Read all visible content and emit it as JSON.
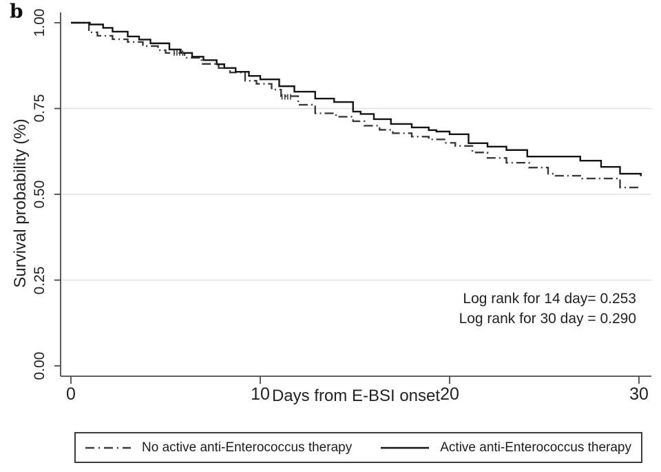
{
  "panel_label": "b",
  "annotations": {
    "line1": "Log rank for 14 day= 0.253",
    "line2": "Log rank for 30 day = 0.290"
  },
  "chart_data": {
    "type": "line",
    "subtype": "kaplan-meier-step",
    "title": "",
    "xlabel": "Days from E-BSI onset",
    "ylabel": "Survival probability (%)",
    "xlim": [
      0,
      30.2
    ],
    "ylim": [
      0.0,
      1.0
    ],
    "x_tick_values": [
      0,
      10,
      20,
      30
    ],
    "x_tick_labels": [
      "0",
      "10",
      "20",
      "30"
    ],
    "y_tick_values": [
      0.0,
      0.25,
      0.5,
      0.75,
      1.0
    ],
    "y_tick_labels": [
      "0.00",
      "0.25",
      "0.50",
      "0.75",
      "1.00"
    ],
    "gridline_values": [
      0.25,
      0.5,
      0.75
    ],
    "grid": true,
    "legend_position": "bottom",
    "axis_color": "#4a4a4a",
    "grid_color": "#e0e0e0",
    "series": [
      {
        "name": "No active anti-Enterococcus therapy",
        "style": "dash-dot",
        "color": "#3a3a3a",
        "points": [
          [
            0,
            1.0
          ],
          [
            0.95,
            0.972
          ],
          [
            1.4,
            0.962
          ],
          [
            2.2,
            0.952
          ],
          [
            3.0,
            0.944
          ],
          [
            3.8,
            0.932
          ],
          [
            4.6,
            0.92
          ],
          [
            5.0,
            0.912
          ],
          [
            6.0,
            0.898
          ],
          [
            6.9,
            0.88
          ],
          [
            7.8,
            0.868
          ],
          [
            8.4,
            0.855
          ],
          [
            9.2,
            0.831
          ],
          [
            9.8,
            0.822
          ],
          [
            10.6,
            0.805
          ],
          [
            11.1,
            0.786
          ],
          [
            12.0,
            0.761
          ],
          [
            12.9,
            0.736
          ],
          [
            14.0,
            0.726
          ],
          [
            14.9,
            0.713
          ],
          [
            15.5,
            0.7
          ],
          [
            16.3,
            0.688
          ],
          [
            17.0,
            0.678
          ],
          [
            18.0,
            0.668
          ],
          [
            18.9,
            0.66
          ],
          [
            19.8,
            0.65
          ],
          [
            20.3,
            0.641
          ],
          [
            21.2,
            0.622
          ],
          [
            22.0,
            0.606
          ],
          [
            23.0,
            0.592
          ],
          [
            24.2,
            0.578
          ],
          [
            25.2,
            0.56
          ],
          [
            25.6,
            0.554
          ],
          [
            27.0,
            0.546
          ],
          [
            29.0,
            0.52
          ],
          [
            30.1,
            0.52
          ]
        ]
      },
      {
        "name": "Active anti-Enterococcus therapy",
        "style": "solid",
        "color": "#141414",
        "points": [
          [
            0,
            1.0
          ],
          [
            1.0,
            0.995
          ],
          [
            1.7,
            0.985
          ],
          [
            2.2,
            0.974
          ],
          [
            3.0,
            0.96
          ],
          [
            3.6,
            0.951
          ],
          [
            4.2,
            0.94
          ],
          [
            5.2,
            0.922
          ],
          [
            5.8,
            0.912
          ],
          [
            6.4,
            0.901
          ],
          [
            7.0,
            0.891
          ],
          [
            7.7,
            0.879
          ],
          [
            8.1,
            0.868
          ],
          [
            8.7,
            0.857
          ],
          [
            9.4,
            0.845
          ],
          [
            10.0,
            0.835
          ],
          [
            11.0,
            0.815
          ],
          [
            11.8,
            0.799
          ],
          [
            12.9,
            0.779
          ],
          [
            13.9,
            0.769
          ],
          [
            14.9,
            0.741
          ],
          [
            15.3,
            0.734
          ],
          [
            16.0,
            0.719
          ],
          [
            16.9,
            0.705
          ],
          [
            18.0,
            0.695
          ],
          [
            18.9,
            0.687
          ],
          [
            19.3,
            0.683
          ],
          [
            20.0,
            0.675
          ],
          [
            21.0,
            0.649
          ],
          [
            22.0,
            0.639
          ],
          [
            23.0,
            0.629
          ],
          [
            24.1,
            0.61
          ],
          [
            26.9,
            0.598
          ],
          [
            28.0,
            0.58
          ],
          [
            29.0,
            0.56
          ],
          [
            30.1,
            0.553
          ]
        ]
      }
    ],
    "censor_marks": {
      "series": "No active anti-Enterococcus therapy",
      "color": "#3a3a3a",
      "points": [
        [
          5.45,
          0.912
        ],
        [
          5.6,
          0.912
        ],
        [
          5.75,
          0.912
        ],
        [
          5.9,
          0.912
        ],
        [
          11.15,
          0.784
        ],
        [
          11.3,
          0.784
        ],
        [
          11.45,
          0.784
        ],
        [
          11.6,
          0.784
        ]
      ]
    }
  },
  "legend": {
    "entries": [
      {
        "label": "No active anti-Enterococcus therapy",
        "style": "dash-dot"
      },
      {
        "label": "Active anti-Enterococcus therapy",
        "style": "solid"
      }
    ]
  }
}
